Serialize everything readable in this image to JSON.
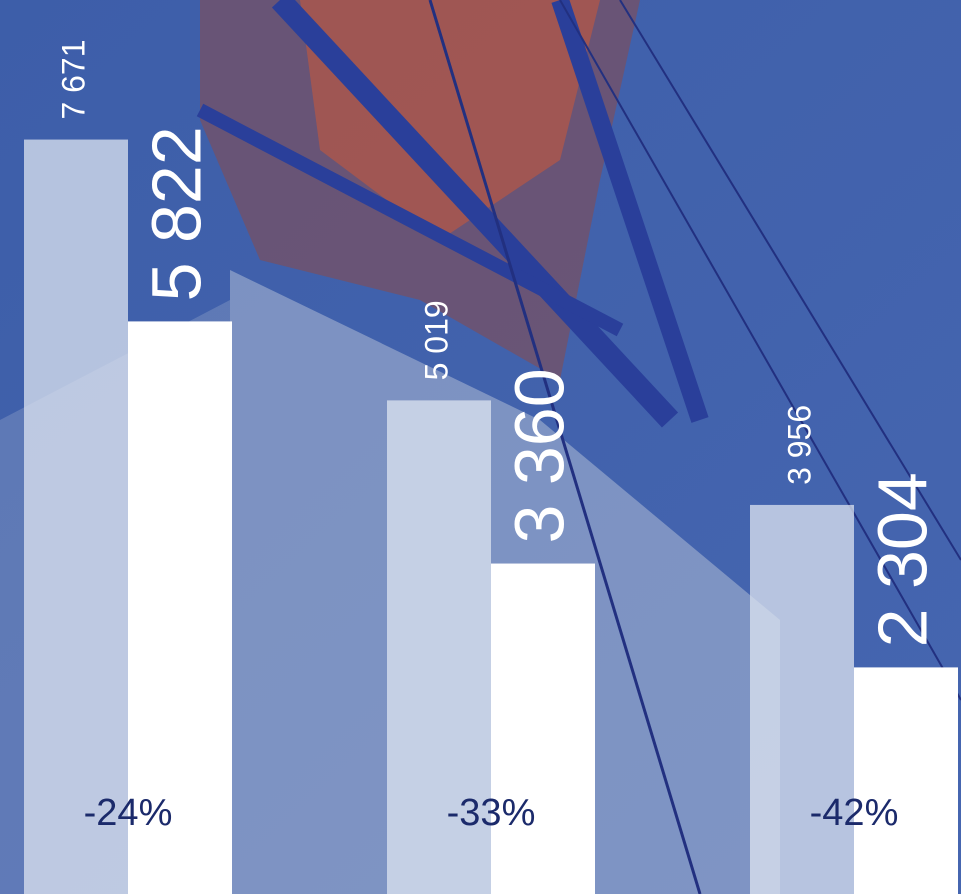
{
  "chart_data": {
    "type": "bar",
    "categories": [
      null,
      null,
      null
    ],
    "series": [
      {
        "color": "#dde4f0",
        "values": [
          7671,
          5019,
          3956
        ],
        "value_labels": [
          "7 671",
          "5 019",
          "3 956"
        ]
      },
      {
        "color": "#ffffff",
        "values": [
          5822,
          3360,
          2304
        ],
        "value_labels": [
          "5 822",
          "3 360",
          "2 304"
        ]
      }
    ],
    "annotations": [
      "-24%",
      "-33%",
      "-42%"
    ],
    "annotation_color": "#1b2a6b",
    "ylim": [
      0,
      9090
    ]
  }
}
